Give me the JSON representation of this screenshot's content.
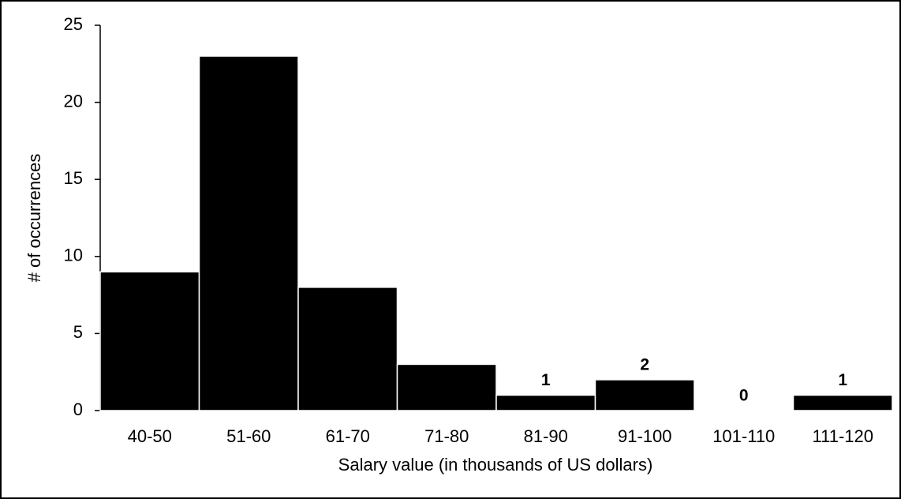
{
  "chart_data": {
    "type": "bar",
    "xlabel": "Salary value (in thousands of US dollars)",
    "ylabel": "# of occurrences",
    "categories": [
      "40-50",
      "51-60",
      "61-70",
      "71-80",
      "81-90",
      "91-100",
      "101-110",
      "111-120"
    ],
    "values": [
      9,
      23,
      8,
      3,
      1,
      2,
      0,
      1
    ],
    "color": "#000000",
    "ylim": [
      0,
      25
    ],
    "yticks": [
      0,
      5,
      10,
      15,
      20,
      25
    ],
    "grid": false
  }
}
